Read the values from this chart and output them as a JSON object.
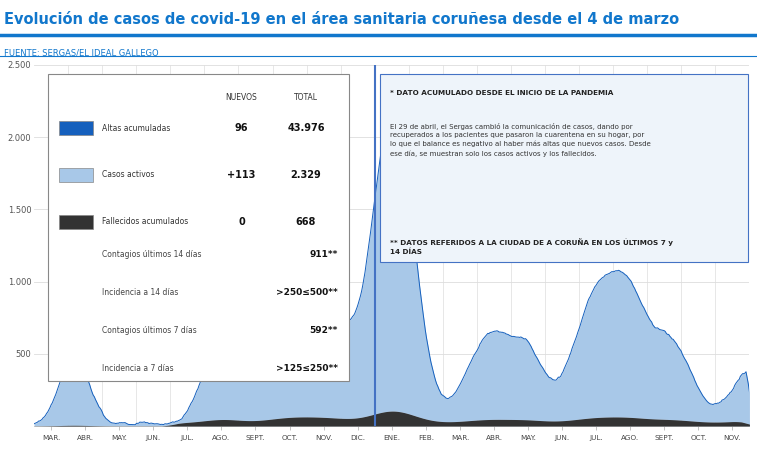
{
  "title": "Evolución de casos de covid-19 en el área sanitaria coruñesa desde el 4 de marzo",
  "source": "FUENTE: SERGAS/EL IDEAL GALLEGO",
  "title_color": "#1177CC",
  "source_color": "#1177CC",
  "bg_color": "#ffffff",
  "title_line_color": "#1177CC",
  "x_months_2020": [
    "MAR.",
    "ABR.",
    "MAY.",
    "JUN.",
    "JUL.",
    "AGO.",
    "SEPT.",
    "OCT.",
    "NOV.",
    "DIC."
  ],
  "x_months_2021": [
    "ENE.",
    "FEB.",
    "MAR.",
    "ABR.",
    "MAY.",
    "JUN.",
    "JUL.",
    "AGO.",
    "SEPT.",
    "OCT.",
    "NOV."
  ],
  "n_months_2020": 10,
  "n_months_2021": 11,
  "ylim": [
    0,
    2500
  ],
  "ytick_step": 500,
  "color_altas": "#1560BD",
  "color_activos": "#A8C8E8",
  "color_fallecidos": "#333333",
  "sep_line_color": "#4472C4",
  "grid_color": "#dddddd",
  "legend_items": [
    {
      "label": "Altas acumuladas",
      "nuevos": "96",
      "total": "43.976",
      "color": "#1560BD"
    },
    {
      "label": "Casos activos",
      "nuevos": "+113",
      "total": "2.329",
      "color": "#A8C8E8"
    },
    {
      "label": "Fallecidos acumulados",
      "nuevos": "0",
      "total": "668",
      "color": "#333333"
    }
  ],
  "stats": [
    {
      "label": "Contagios últimos 14 días",
      "value": "911**",
      "bold": false
    },
    {
      "label": "Incidencia a 14 días",
      "value": ">250≤500**",
      "bold": true
    },
    {
      "label": "Contagios últimos 7 días",
      "value": "592**",
      "bold": false
    },
    {
      "label": "Incidencia a 7 días",
      "value": ">125≤250**",
      "bold": true
    }
  ],
  "note1": "* DATO ACUMULADO DESDE EL INICIO DE LA PANDEMIA",
  "note2": "El 29 de abril, el Sergas cambió la comunicación de casos, dando por\nrecuperados a los pacientes que pasaron la cuarentena en su hogar, por\nlo que el balance es negativo al haber más altas que nuevos casos. Desde\nese día, se muestran solo los casos activos y los fallecidos.",
  "note3": "** DATOS REFERIDOS A LA CIUDAD DE A CORUÑA EN LOS ÚLTIMOS 7 y\n14 DÍAS",
  "note_box_color": "#EEF4FA",
  "note_border_color": "#4472C4"
}
